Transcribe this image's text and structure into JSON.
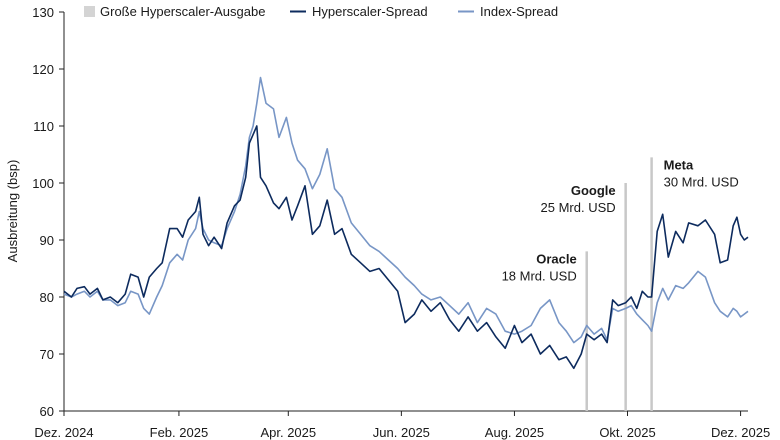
{
  "chart_data": {
    "type": "line",
    "title": "",
    "xlabel": "",
    "ylabel": "Ausbreitung (bsp)",
    "ylim": [
      60,
      130
    ],
    "yticks": [
      60,
      70,
      80,
      90,
      100,
      110,
      120,
      130
    ],
    "xlim": [
      "2024-12-01",
      "2025-12-05"
    ],
    "xticks": [
      {
        "date": "2024-12-01",
        "label": "Dez. 2024"
      },
      {
        "date": "2025-02-01",
        "label": "Feb. 2025"
      },
      {
        "date": "2025-04-01",
        "label": "Apr. 2025"
      },
      {
        "date": "2025-06-01",
        "label": "Jun. 2025"
      },
      {
        "date": "2025-08-01",
        "label": "Aug. 2025"
      },
      {
        "date": "2025-10-01",
        "label": "Okt. 2025"
      },
      {
        "date": "2025-12-01",
        "label": "Dez. 2025"
      }
    ],
    "grid": false,
    "legend_position": "top",
    "legend": [
      {
        "label": "Große Hyperscaler-Ausgabe",
        "marker": "square",
        "color": "#d4d4d4"
      },
      {
        "label": "Hyperscaler-Spread",
        "marker": "line",
        "color": "#0d2b5e"
      },
      {
        "label": "Index-Spread",
        "marker": "line",
        "color": "#7896c6"
      }
    ],
    "events": [
      {
        "date": "2025-09-09",
        "top": 88,
        "label": "Oracle",
        "amount": "18 Mrd. USD"
      },
      {
        "date": "2025-09-30",
        "top": 100,
        "label": "Google",
        "amount": "25 Mrd. USD"
      },
      {
        "date": "2025-10-14",
        "top": 104.5,
        "label": "Meta",
        "amount": "30 Mrd. USD"
      }
    ],
    "series": [
      {
        "name": "Hyperscaler-Spread",
        "color": "#0d2b5e",
        "points": [
          [
            "2024-12-01",
            81
          ],
          [
            "2024-12-05",
            80
          ],
          [
            "2024-12-08",
            81.5
          ],
          [
            "2024-12-12",
            81.8
          ],
          [
            "2024-12-15",
            80.5
          ],
          [
            "2024-12-19",
            81.5
          ],
          [
            "2024-12-22",
            79.5
          ],
          [
            "2024-12-26",
            80
          ],
          [
            "2024-12-30",
            79
          ],
          [
            "2025-01-03",
            80.5
          ],
          [
            "2025-01-06",
            84
          ],
          [
            "2025-01-10",
            83.5
          ],
          [
            "2025-01-13",
            80
          ],
          [
            "2025-01-16",
            83.5
          ],
          [
            "2025-01-20",
            85
          ],
          [
            "2025-01-23",
            86
          ],
          [
            "2025-01-27",
            92
          ],
          [
            "2025-01-31",
            92
          ],
          [
            "2025-02-03",
            90.5
          ],
          [
            "2025-02-06",
            93.5
          ],
          [
            "2025-02-10",
            95
          ],
          [
            "2025-02-12",
            97.5
          ],
          [
            "2025-02-14",
            91
          ],
          [
            "2025-02-17",
            89
          ],
          [
            "2025-02-20",
            90.5
          ],
          [
            "2025-02-24",
            88.5
          ],
          [
            "2025-02-27",
            93
          ],
          [
            "2025-03-03",
            96
          ],
          [
            "2025-03-06",
            97
          ],
          [
            "2025-03-09",
            101
          ],
          [
            "2025-03-11",
            107
          ],
          [
            "2025-03-13",
            108.5
          ],
          [
            "2025-03-15",
            110
          ],
          [
            "2025-03-17",
            101
          ],
          [
            "2025-03-20",
            99.5
          ],
          [
            "2025-03-24",
            96.5
          ],
          [
            "2025-03-27",
            95.5
          ],
          [
            "2025-03-31",
            97.5
          ],
          [
            "2025-04-03",
            93.5
          ],
          [
            "2025-04-06",
            96
          ],
          [
            "2025-04-10",
            99.5
          ],
          [
            "2025-04-14",
            91
          ],
          [
            "2025-04-18",
            92.5
          ],
          [
            "2025-04-22",
            97
          ],
          [
            "2025-04-26",
            91
          ],
          [
            "2025-04-30",
            92
          ],
          [
            "2025-05-05",
            87.5
          ],
          [
            "2025-05-10",
            86
          ],
          [
            "2025-05-15",
            84.5
          ],
          [
            "2025-05-20",
            85
          ],
          [
            "2025-05-25",
            83
          ],
          [
            "2025-05-30",
            81
          ],
          [
            "2025-06-03",
            75.5
          ],
          [
            "2025-06-08",
            77
          ],
          [
            "2025-06-12",
            79.5
          ],
          [
            "2025-06-17",
            77.5
          ],
          [
            "2025-06-22",
            79
          ],
          [
            "2025-06-27",
            76
          ],
          [
            "2025-07-02",
            74
          ],
          [
            "2025-07-07",
            76.5
          ],
          [
            "2025-07-12",
            74
          ],
          [
            "2025-07-17",
            75.5
          ],
          [
            "2025-07-22",
            73
          ],
          [
            "2025-07-27",
            71
          ],
          [
            "2025-08-01",
            75
          ],
          [
            "2025-08-05",
            72
          ],
          [
            "2025-08-10",
            73.5
          ],
          [
            "2025-08-15",
            70
          ],
          [
            "2025-08-20",
            71.5
          ],
          [
            "2025-08-25",
            69
          ],
          [
            "2025-08-29",
            69.5
          ],
          [
            "2025-09-02",
            67.5
          ],
          [
            "2025-09-06",
            70
          ],
          [
            "2025-09-09",
            73.5
          ],
          [
            "2025-09-13",
            72.5
          ],
          [
            "2025-09-17",
            73.5
          ],
          [
            "2025-09-20",
            72
          ],
          [
            "2025-09-23",
            79.5
          ],
          [
            "2025-09-26",
            78.5
          ],
          [
            "2025-09-30",
            79
          ],
          [
            "2025-10-03",
            80
          ],
          [
            "2025-10-06",
            78
          ],
          [
            "2025-10-09",
            81
          ],
          [
            "2025-10-12",
            80
          ],
          [
            "2025-10-14",
            80
          ],
          [
            "2025-10-17",
            91.5
          ],
          [
            "2025-10-20",
            94.5
          ],
          [
            "2025-10-23",
            87
          ],
          [
            "2025-10-27",
            91.5
          ],
          [
            "2025-10-31",
            89.5
          ],
          [
            "2025-11-03",
            93
          ],
          [
            "2025-11-08",
            92.5
          ],
          [
            "2025-11-12",
            93.5
          ],
          [
            "2025-11-17",
            91
          ],
          [
            "2025-11-20",
            86
          ],
          [
            "2025-11-24",
            86.5
          ],
          [
            "2025-11-27",
            92.5
          ],
          [
            "2025-11-29",
            94
          ],
          [
            "2025-12-01",
            91
          ],
          [
            "2025-12-03",
            90
          ],
          [
            "2025-12-05",
            90.5
          ]
        ]
      },
      {
        "name": "Index-Spread",
        "color": "#7896c6",
        "points": [
          [
            "2024-12-01",
            80.5
          ],
          [
            "2024-12-05",
            80
          ],
          [
            "2024-12-08",
            80.5
          ],
          [
            "2024-12-12",
            81
          ],
          [
            "2024-12-15",
            80
          ],
          [
            "2024-12-19",
            81
          ],
          [
            "2024-12-22",
            79.5
          ],
          [
            "2024-12-26",
            79.5
          ],
          [
            "2024-12-30",
            78.5
          ],
          [
            "2025-01-03",
            79
          ],
          [
            "2025-01-06",
            81
          ],
          [
            "2025-01-10",
            80.5
          ],
          [
            "2025-01-13",
            78
          ],
          [
            "2025-01-16",
            77
          ],
          [
            "2025-01-20",
            80
          ],
          [
            "2025-01-23",
            82
          ],
          [
            "2025-01-27",
            86
          ],
          [
            "2025-01-31",
            87.5
          ],
          [
            "2025-02-03",
            86.5
          ],
          [
            "2025-02-06",
            90
          ],
          [
            "2025-02-10",
            92
          ],
          [
            "2025-02-12",
            95
          ],
          [
            "2025-02-14",
            92
          ],
          [
            "2025-02-17",
            90
          ],
          [
            "2025-02-20",
            89.5
          ],
          [
            "2025-02-24",
            89
          ],
          [
            "2025-02-27",
            92
          ],
          [
            "2025-03-03",
            95
          ],
          [
            "2025-03-06",
            98
          ],
          [
            "2025-03-09",
            103
          ],
          [
            "2025-03-11",
            108
          ],
          [
            "2025-03-13",
            110
          ],
          [
            "2025-03-15",
            114
          ],
          [
            "2025-03-17",
            118.5
          ],
          [
            "2025-03-20",
            114
          ],
          [
            "2025-03-24",
            113
          ],
          [
            "2025-03-27",
            108
          ],
          [
            "2025-03-31",
            111.5
          ],
          [
            "2025-04-03",
            107
          ],
          [
            "2025-04-06",
            104
          ],
          [
            "2025-04-10",
            102.5
          ],
          [
            "2025-04-14",
            99
          ],
          [
            "2025-04-18",
            101.5
          ],
          [
            "2025-04-22",
            106
          ],
          [
            "2025-04-26",
            99
          ],
          [
            "2025-04-30",
            97.5
          ],
          [
            "2025-05-05",
            93
          ],
          [
            "2025-05-10",
            91
          ],
          [
            "2025-05-15",
            89
          ],
          [
            "2025-05-20",
            88
          ],
          [
            "2025-05-25",
            86.5
          ],
          [
            "2025-05-30",
            85
          ],
          [
            "2025-06-03",
            83.5
          ],
          [
            "2025-06-08",
            82
          ],
          [
            "2025-06-12",
            80.5
          ],
          [
            "2025-06-17",
            79.5
          ],
          [
            "2025-06-22",
            80
          ],
          [
            "2025-06-27",
            78.5
          ],
          [
            "2025-07-02",
            77
          ],
          [
            "2025-07-07",
            79
          ],
          [
            "2025-07-12",
            75.5
          ],
          [
            "2025-07-17",
            78
          ],
          [
            "2025-07-22",
            77
          ],
          [
            "2025-07-27",
            74
          ],
          [
            "2025-08-01",
            73.5
          ],
          [
            "2025-08-05",
            74
          ],
          [
            "2025-08-10",
            75
          ],
          [
            "2025-08-15",
            78
          ],
          [
            "2025-08-20",
            79.5
          ],
          [
            "2025-08-25",
            75.5
          ],
          [
            "2025-08-29",
            74
          ],
          [
            "2025-09-02",
            72
          ],
          [
            "2025-09-06",
            73
          ],
          [
            "2025-09-09",
            75
          ],
          [
            "2025-09-13",
            73.5
          ],
          [
            "2025-09-17",
            74.5
          ],
          [
            "2025-09-20",
            72.5
          ],
          [
            "2025-09-23",
            78
          ],
          [
            "2025-09-26",
            77.5
          ],
          [
            "2025-09-30",
            78
          ],
          [
            "2025-10-03",
            78.5
          ],
          [
            "2025-10-06",
            77
          ],
          [
            "2025-10-09",
            76
          ],
          [
            "2025-10-12",
            75
          ],
          [
            "2025-10-14",
            74
          ],
          [
            "2025-10-17",
            79
          ],
          [
            "2025-10-20",
            81.5
          ],
          [
            "2025-10-23",
            79.5
          ],
          [
            "2025-10-27",
            82
          ],
          [
            "2025-10-31",
            81.5
          ],
          [
            "2025-11-03",
            82.5
          ],
          [
            "2025-11-08",
            84.5
          ],
          [
            "2025-11-12",
            83.5
          ],
          [
            "2025-11-17",
            79
          ],
          [
            "2025-11-20",
            77.5
          ],
          [
            "2025-11-24",
            76.5
          ],
          [
            "2025-11-27",
            78
          ],
          [
            "2025-11-29",
            77.5
          ],
          [
            "2025-12-01",
            76.5
          ],
          [
            "2025-12-03",
            77
          ],
          [
            "2025-12-05",
            77.5
          ]
        ]
      }
    ]
  }
}
